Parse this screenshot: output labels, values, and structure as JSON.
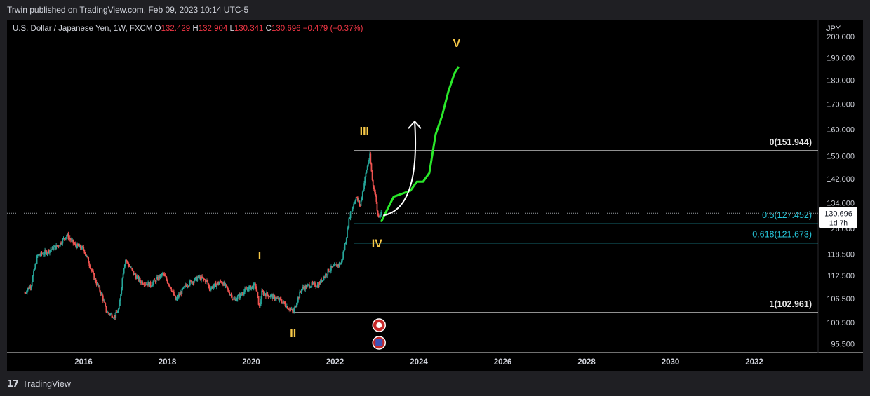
{
  "header": {
    "published": "Trwin published on TradingView.com, Feb 09, 2023 10:14 UTC-5"
  },
  "legend": {
    "symbol": "U.S. Dollar / Japanese Yen, 1W, FXCM",
    "open_label": "O",
    "open": "132.429",
    "high_label": "H",
    "high": "132.904",
    "low_label": "L",
    "low": "130.341",
    "close_label": "C",
    "close": "130.696",
    "change": "−0.479 (−0.37%)"
  },
  "footer": {
    "brand": "TradingView",
    "logo_glyph": "𝟭𝟳"
  },
  "colors": {
    "up": "#26a69a",
    "down": "#ef5350",
    "projection": "#2ae82a",
    "wave_label": "#f7c948",
    "fib_mid": "#26c6da",
    "accent": "#2962ff"
  },
  "chart_data": {
    "type": "candlestick",
    "currency": "JPY",
    "y_scale": "log",
    "ylim": [
      93.5,
      202
    ],
    "y_ticks": [
      "200.000",
      "190.000",
      "180.000",
      "170.000",
      "160.000",
      "150.000",
      "142.000",
      "134.000",
      "126.000",
      "118.500",
      "112.500",
      "106.500",
      "100.500",
      "95.500"
    ],
    "x_ticks": [
      "2016",
      "2018",
      "2020",
      "2022",
      "2024",
      "2026",
      "2028",
      "2030",
      "2032"
    ],
    "price_line": {
      "value": 130.696,
      "label": "130.696",
      "countdown": "1d 7h"
    },
    "fib_levels": [
      {
        "label": "0(151.944)",
        "value": 151.944,
        "start": "2022.45"
      },
      {
        "label": "0.5(127.452)",
        "value": 127.452,
        "start": "2022.45"
      },
      {
        "label": "0.618(121.673)",
        "value": 121.673,
        "start": "2022.45"
      },
      {
        "label": "1(102.961)",
        "value": 102.961,
        "start": "2021.0"
      }
    ],
    "wave_labels": [
      {
        "text": "I",
        "x": 2020.2,
        "y": 117
      },
      {
        "text": "II",
        "x": 2021.0,
        "y": 97
      },
      {
        "text": "III",
        "x": 2022.7,
        "y": 158
      },
      {
        "text": "IV",
        "x": 2023.0,
        "y": 120.5
      },
      {
        "text": "V",
        "x": 2024.9,
        "y": 195
      }
    ],
    "history_anchors": [
      [
        2014.6,
        108
      ],
      [
        2014.75,
        110
      ],
      [
        2014.9,
        118
      ],
      [
        2015.1,
        119
      ],
      [
        2015.4,
        121
      ],
      [
        2015.6,
        124
      ],
      [
        2015.8,
        121
      ],
      [
        2016.0,
        120
      ],
      [
        2016.1,
        117
      ],
      [
        2016.25,
        112
      ],
      [
        2016.45,
        107
      ],
      [
        2016.55,
        103
      ],
      [
        2016.75,
        102
      ],
      [
        2016.85,
        104
      ],
      [
        2016.95,
        114
      ],
      [
        2017.0,
        117
      ],
      [
        2017.2,
        113
      ],
      [
        2017.35,
        111
      ],
      [
        2017.6,
        110
      ],
      [
        2017.9,
        113
      ],
      [
        2018.1,
        109
      ],
      [
        2018.2,
        106
      ],
      [
        2018.45,
        110
      ],
      [
        2018.75,
        112
      ],
      [
        2018.95,
        111
      ],
      [
        2019.0,
        109
      ],
      [
        2019.3,
        111
      ],
      [
        2019.6,
        106
      ],
      [
        2019.85,
        108.5
      ],
      [
        2020.1,
        110
      ],
      [
        2020.2,
        104
      ],
      [
        2020.25,
        108
      ],
      [
        2020.5,
        107
      ],
      [
        2020.7,
        106
      ],
      [
        2020.85,
        104.5
      ],
      [
        2021.0,
        103
      ],
      [
        2021.2,
        109
      ],
      [
        2021.4,
        110
      ],
      [
        2021.6,
        110
      ],
      [
        2021.85,
        114
      ],
      [
        2022.0,
        115
      ],
      [
        2022.15,
        116
      ],
      [
        2022.25,
        122
      ],
      [
        2022.35,
        130
      ],
      [
        2022.5,
        136
      ],
      [
        2022.6,
        133
      ],
      [
        2022.75,
        145
      ],
      [
        2022.83,
        150
      ],
      [
        2022.9,
        140
      ],
      [
        2022.95,
        138
      ],
      [
        2023.02,
        130
      ],
      [
        2023.1,
        130.7
      ]
    ],
    "projection": [
      [
        2023.1,
        128
      ],
      [
        2023.25,
        132
      ],
      [
        2023.4,
        136
      ],
      [
        2023.6,
        137
      ],
      [
        2023.8,
        138
      ],
      [
        2023.95,
        141
      ],
      [
        2024.1,
        141
      ],
      [
        2024.25,
        144
      ],
      [
        2024.4,
        158
      ],
      [
        2024.55,
        165
      ],
      [
        2024.7,
        175
      ],
      [
        2024.85,
        183
      ],
      [
        2024.95,
        186
      ]
    ],
    "arrow": {
      "from": [
        2023.15,
        130
      ],
      "to": [
        2023.9,
        163
      ]
    }
  }
}
